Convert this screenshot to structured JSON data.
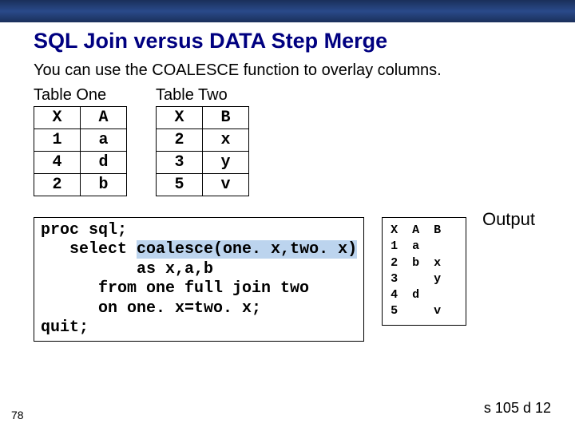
{
  "title": "SQL Join versus DATA Step Merge",
  "intro": "You can use the COALESCE function to overlay columns.",
  "tableOne": {
    "caption": "Table One",
    "headers": [
      "X",
      "A"
    ],
    "rows": [
      [
        "1",
        "a"
      ],
      [
        "4",
        "d"
      ],
      [
        "2",
        "b"
      ]
    ]
  },
  "tableTwo": {
    "caption": "Table Two",
    "headers": [
      "X",
      "B"
    ],
    "rows": [
      [
        "2",
        "x"
      ],
      [
        "3",
        "y"
      ],
      [
        "5",
        "v"
      ]
    ]
  },
  "outputLabel": "Output",
  "code": {
    "l1": "proc sql;",
    "l2a": "   select ",
    "l2b": "coalesce(one. x,two. x)",
    "l3": "          as x,a,b",
    "l4": "      from one full join two",
    "l5": "      on one. x=two. x;",
    "l6": "quit;"
  },
  "output": {
    "hdr": "X  A  B",
    "r1": "1  a",
    "r2": "2  b  x",
    "r3": "3     y",
    "r4": "4  d",
    "r5": "5     v"
  },
  "pageNum": "78",
  "footerId": "s 105 d 12"
}
